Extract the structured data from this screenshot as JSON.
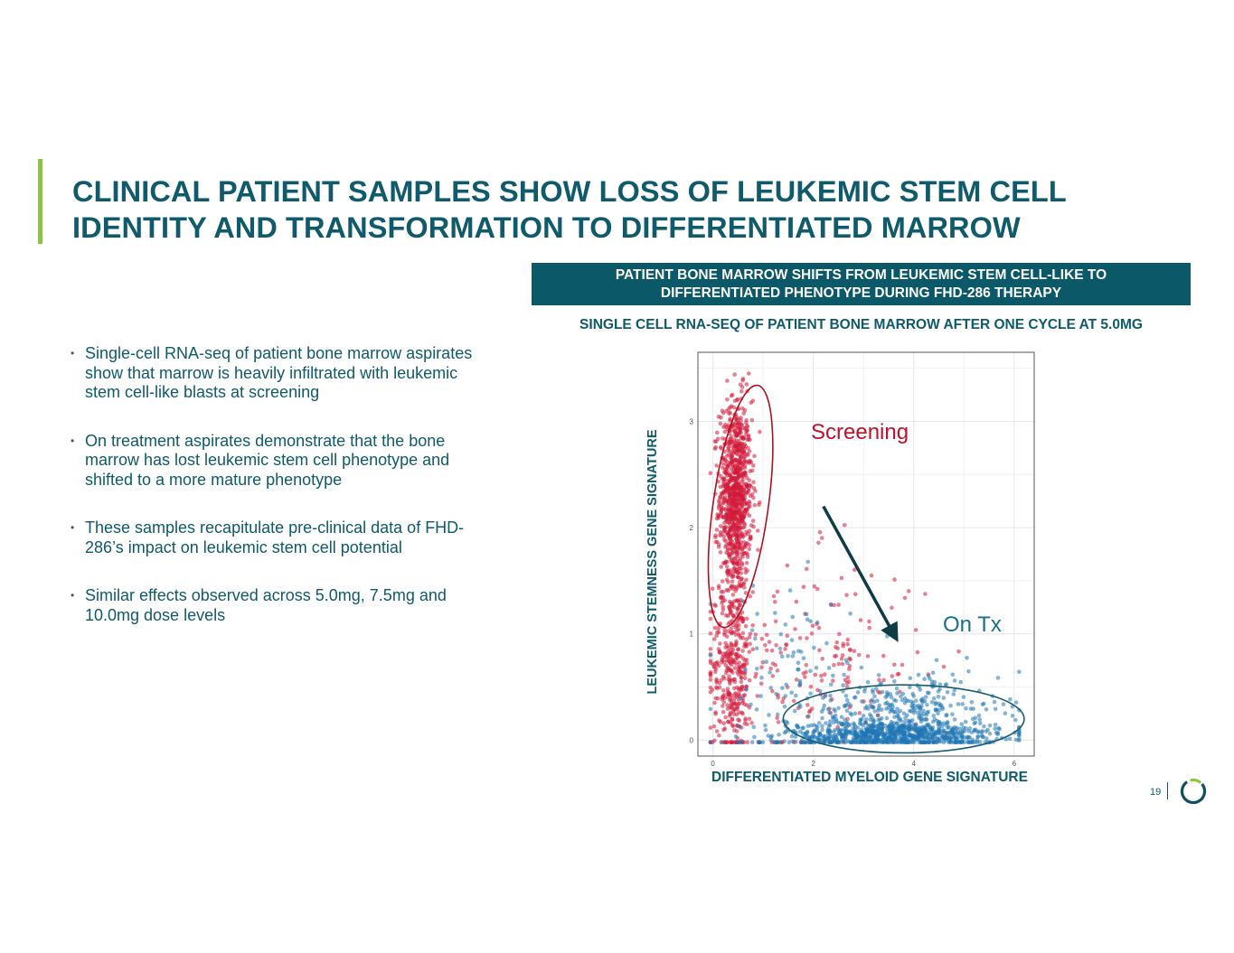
{
  "slide": {
    "title": "CLINICAL PATIENT SAMPLES SHOW LOSS OF LEUKEMIC STEM CELL IDENTITY AND TRANSFORMATION TO DIFFERENTIATED MARROW",
    "banner": "PATIENT BONE MARROW SHIFTS FROM LEUKEMIC STEM CELL-LIKE TO DIFFERENTIATED PHENOTYPE DURING FHD-286 THERAPY",
    "subheading": "SINGLE CELL RNA-SEQ OF PATIENT BONE MARROW AFTER ONE CYCLE AT 5.0MG",
    "bullets": [
      "Single-cell RNA-seq of patient bone marrow aspirates show that marrow is heavily infiltrated with leukemic stem cell-like blasts at screening",
      "On treatment aspirates demonstrate that the bone marrow has lost leukemic stem cell phenotype and shifted to a more mature phenotype",
      "These samples recapitulate pre-clinical data of FHD-286’s impact on leukemic stem cell potential",
      "Similar effects observed across 5.0mg, 7.5mg and 10.0mg dose levels"
    ],
    "bullet_glyph": "•",
    "page_number": "19"
  },
  "colors": {
    "accent_green": "#8cc63f",
    "title_teal": "#0f5a6b",
    "banner_bg": "#0a5868",
    "screening_red": "#d11a3a",
    "ontx_blue": "#1f77b4"
  },
  "chart_data": {
    "type": "scatter",
    "title": "SINGLE CELL RNA-SEQ OF PATIENT BONE MARROW AFTER ONE CYCLE AT 5.0MG",
    "xlabel": "DIFFERENTIATED MYELOID GENE SIGNATURE",
    "ylabel": "LEUKEMIC STEMNESS GENE SIGNATURE",
    "xlim": [
      -0.3,
      6.4
    ],
    "ylim": [
      -0.15,
      3.65
    ],
    "xticks": [
      0,
      2,
      4,
      6
    ],
    "yticks": [
      0,
      1,
      2,
      3
    ],
    "grid": true,
    "series": [
      {
        "name": "Screening",
        "color": "#d11a3a",
        "point_count": 1500,
        "clusters": [
          {
            "weight": 0.62,
            "x_mean": 0.45,
            "x_sd": 0.16,
            "y_mean": 2.3,
            "y_sd": 0.45
          },
          {
            "weight": 0.24,
            "x_mean": 0.4,
            "x_sd": 0.2,
            "y_mean": 0.7,
            "y_sd": 0.45
          },
          {
            "weight": 0.14,
            "x_mean": 1.9,
            "x_sd": 1.2,
            "y_mean": 0.7,
            "y_sd": 0.5
          }
        ]
      },
      {
        "name": "On Tx",
        "color": "#1f77b4",
        "point_count": 1200,
        "clusters": [
          {
            "weight": 0.6,
            "x_mean": 3.6,
            "x_sd": 1.05,
            "y_mean": 0.05,
            "y_sd": 0.06
          },
          {
            "weight": 0.3,
            "x_mean": 3.8,
            "x_sd": 0.95,
            "y_mean": 0.25,
            "y_sd": 0.18
          },
          {
            "weight": 0.1,
            "x_mean": 1.6,
            "x_sd": 1.0,
            "y_mean": 0.4,
            "y_sd": 0.5
          }
        ]
      }
    ],
    "annotations": [
      {
        "text": "Screening",
        "color": "#c0102a",
        "ellipse": {
          "cx": 0.55,
          "cy": 2.2,
          "rx": 0.55,
          "ry": 1.15,
          "rotation_deg": 8
        }
      },
      {
        "text": "On Tx",
        "color": "#1a6e8e",
        "ellipse": {
          "cx": 3.8,
          "cy": 0.2,
          "rx": 2.4,
          "ry": 0.32,
          "rotation_deg": 0
        }
      },
      {
        "text": "",
        "type": "arrow",
        "from": [
          2.2,
          2.2
        ],
        "to": [
          3.6,
          1.0
        ]
      }
    ]
  }
}
